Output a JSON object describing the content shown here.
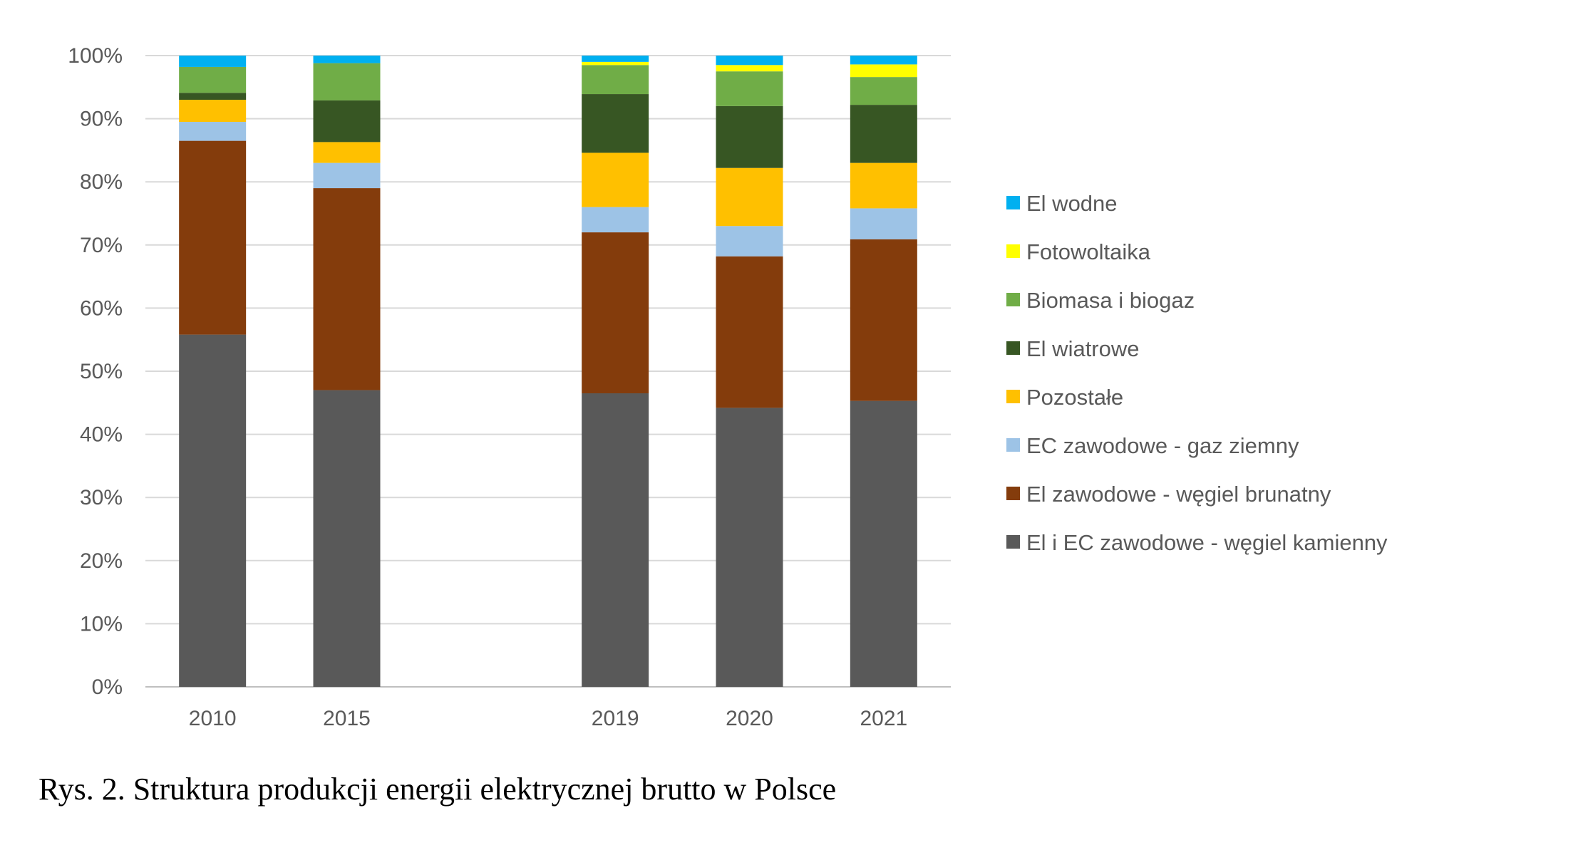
{
  "caption": "Rys. 2. Struktura produkcji energii elektrycznej brutto w Polsce",
  "chart_data": {
    "type": "bar",
    "stacked": true,
    "percent": true,
    "categories": [
      "2010",
      "2015",
      "",
      "2019",
      "2020",
      "2021"
    ],
    "ylim": [
      0,
      100
    ],
    "yticks": [
      "0%",
      "10%",
      "20%",
      "30%",
      "40%",
      "50%",
      "60%",
      "70%",
      "80%",
      "90%",
      "100%"
    ],
    "grid": true,
    "legend_position": "right",
    "legend_order": "reverse",
    "series": [
      {
        "name": "El i EC zawodowe - węgiel kamienny",
        "color": "#595959",
        "values": [
          55.8,
          47.0,
          null,
          46.5,
          44.2,
          45.3
        ]
      },
      {
        "name": "El zawodowe - węgiel brunatny",
        "color": "#843C0C",
        "values": [
          30.7,
          32.0,
          null,
          25.5,
          24.0,
          25.6
        ]
      },
      {
        "name": "EC zawodowe - gaz ziemny",
        "color": "#9DC3E6",
        "values": [
          3.0,
          4.0,
          null,
          4.0,
          4.8,
          4.9
        ]
      },
      {
        "name": "Pozostałe",
        "color": "#FFC000",
        "values": [
          3.5,
          3.3,
          null,
          8.6,
          9.2,
          7.2
        ]
      },
      {
        "name": "El wiatrowe",
        "color": "#375623",
        "values": [
          1.1,
          6.6,
          null,
          9.3,
          9.8,
          9.2
        ]
      },
      {
        "name": "Biomasa i biogaz",
        "color": "#70AD47",
        "values": [
          4.1,
          5.9,
          null,
          4.6,
          5.5,
          4.4
        ]
      },
      {
        "name": "Fotowoltaika",
        "color": "#FFFF00",
        "values": [
          0.0,
          0.0,
          null,
          0.5,
          1.0,
          2.0
        ]
      },
      {
        "name": "El wodne",
        "color": "#00B0F0",
        "values": [
          1.8,
          1.2,
          null,
          1.0,
          1.5,
          1.4
        ]
      }
    ]
  }
}
